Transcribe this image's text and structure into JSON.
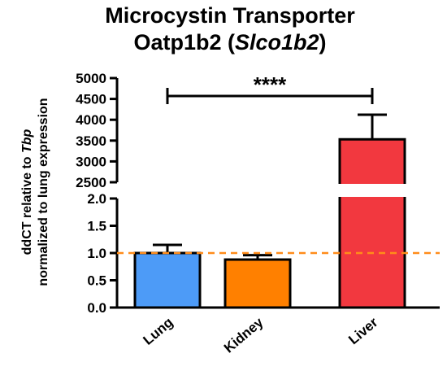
{
  "chart_data": {
    "type": "bar",
    "title_line1": "Microcystin Transporter",
    "title_line2_prefix": "Oatp1b2 (",
    "title_line2_italic": "Slco1b2",
    "title_line2_suffix": ")",
    "ylabel_line1_prefix": "ddCT relative to ",
    "ylabel_line1_italic": "Tbp",
    "ylabel_line2": "normalized to lung expression",
    "categories": [
      "Lung",
      "Kidney",
      "Liver"
    ],
    "values": [
      1.0,
      0.88,
      3530
    ],
    "error_upper": [
      1.15,
      0.96,
      4120
    ],
    "colors": [
      "#4d9bf7",
      "#ff8000",
      "#f2383f"
    ],
    "axis_break": {
      "lower_range": [
        0.0,
        2.0
      ],
      "upper_range": [
        2500,
        5000
      ],
      "lower_ticks": [
        "0.0",
        "0.5",
        "1.0",
        "1.5",
        "2.0"
      ],
      "upper_ticks": [
        "2500",
        "3000",
        "3500",
        "4000",
        "4500",
        "5000"
      ]
    },
    "reference_line": {
      "value": 1.0,
      "color": "#ff8c1a",
      "style": "dashed"
    },
    "significance": {
      "from": "Lung",
      "to": "Liver",
      "label": "****"
    }
  }
}
